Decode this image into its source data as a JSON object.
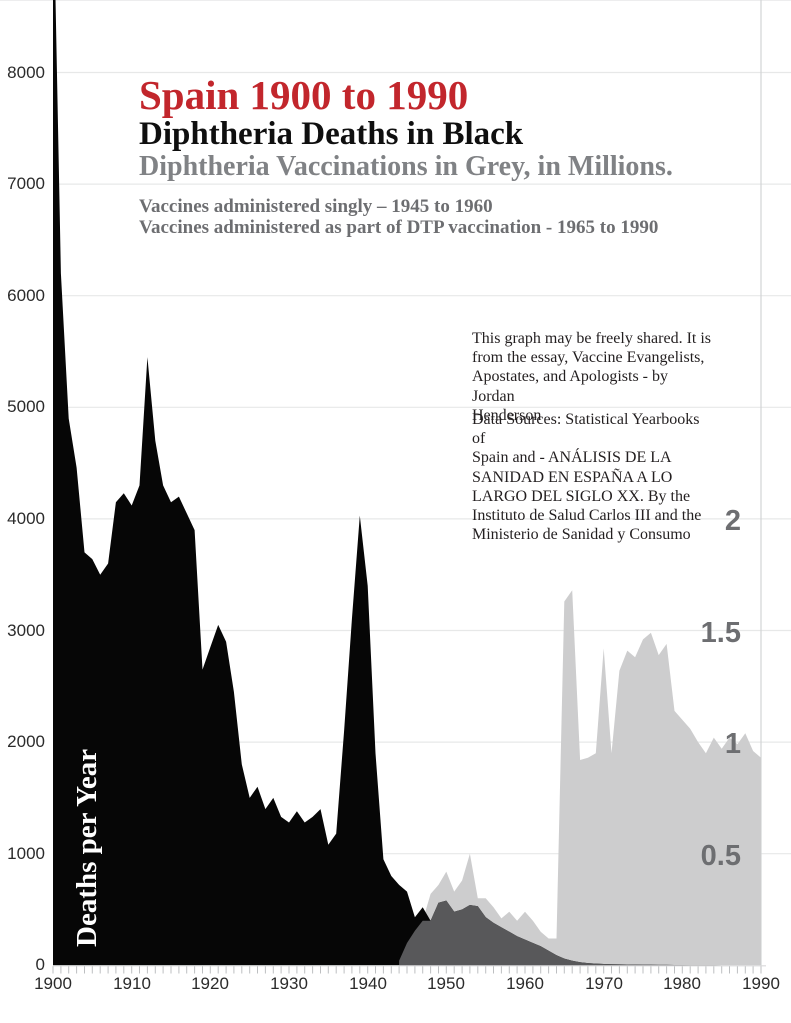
{
  "header": {
    "title": "Spain 1900 to 1990",
    "subtitle_deaths": "Diphtheria Deaths in Black",
    "subtitle_vaccinations": "Diphtheria Vaccinations in Grey, in Millions.",
    "schedule_note": "Vaccines administered singly – 1945 to 1960\nVaccines administered as part of  DTP vaccination - 1965 to 1990"
  },
  "annotations": {
    "share_note": "This graph may be freely shared. It is\nfrom the essay, Vaccine Evangelists,\nApostates, and Apologists - by Jordan\nHenderson",
    "data_sources": "Data Sources: Statistical Yearbooks of\nSpain and - ANÁLISIS DE LA\nSANIDAD EN ESPAÑA A LO\nLARGO DEL SIGLO XX. By the\nInstituto de Salud Carlos III and the\nMinisterio de Sanidad y Consumo"
  },
  "colors": {
    "title_red": "#c2262c",
    "title_grey": "#808285",
    "note_grey": "#6d6e71",
    "deaths_fill": "#060606",
    "vaccinations_fill": "#cdcdce",
    "overlap_fill": "#58585a",
    "gridline": "#e7e8e8",
    "baseline": "#d8d9da",
    "tick": "#bdbfc1",
    "right_line": "#d2d4d5",
    "axis_text": "#2b2b2b"
  },
  "chart_data": {
    "type": "area",
    "title": "Spain 1900 to 1990",
    "ylabel_left": "Deaths per Year",
    "x_range": [
      1900,
      1990
    ],
    "x_ticks": [
      1900,
      1910,
      1920,
      1930,
      1940,
      1950,
      1960,
      1970,
      1980,
      1990
    ],
    "left_axis": {
      "label": "Deaths per Year",
      "ticks": [
        8000,
        7000,
        6000,
        5000,
        4000,
        3000,
        2000,
        1000,
        0
      ],
      "top_clip_value": 8650
    },
    "right_axis": {
      "units": "millions of vaccinations",
      "ticks": [
        2,
        1.5,
        1,
        0.5
      ],
      "deaths_units_per_million": 2000
    },
    "series": [
      {
        "name": "Diphtheria Deaths",
        "axis": "left",
        "x_start": 1900,
        "values": [
          9800,
          6200,
          4900,
          4460,
          3700,
          3640,
          3500,
          3600,
          4150,
          4230,
          4120,
          4300,
          5450,
          4700,
          4300,
          4150,
          4200,
          4050,
          3900,
          2650,
          2850,
          3050,
          2900,
          2450,
          1800,
          1500,
          1600,
          1400,
          1500,
          1330,
          1280,
          1380,
          1280,
          1330,
          1400,
          1080,
          1180,
          2100,
          3100,
          4030,
          3400,
          1900,
          950,
          800,
          720,
          660,
          430,
          520,
          400,
          560,
          580,
          480,
          500,
          540,
          530,
          430,
          380,
          340,
          300,
          260,
          230,
          200,
          170,
          130,
          90,
          60,
          40,
          28,
          20,
          15,
          12,
          10,
          8,
          7,
          6,
          5,
          5,
          4,
          4,
          3,
          3,
          2,
          2,
          2,
          2,
          1,
          1,
          1,
          1,
          0,
          0
        ]
      },
      {
        "name": "Diphtheria Vaccinations (millions)",
        "axis": "right",
        "x_start": 1944,
        "values": [
          0.02,
          0.1,
          0.155,
          0.2,
          0.32,
          0.36,
          0.42,
          0.33,
          0.38,
          0.5,
          0.3,
          0.3,
          0.26,
          0.21,
          0.24,
          0.2,
          0.24,
          0.2,
          0.15,
          0.12,
          0.12,
          1.63,
          1.68,
          0.92,
          0.93,
          0.95,
          1.42,
          0.95,
          1.32,
          1.41,
          1.38,
          1.46,
          1.49,
          1.39,
          1.44,
          1.14,
          1.1,
          1.06,
          1.0,
          0.95,
          1.02,
          0.97,
          1.02,
          0.99,
          1.04,
          0.96,
          0.93
        ]
      }
    ],
    "legend_position": "none",
    "grid": "horizontal"
  }
}
